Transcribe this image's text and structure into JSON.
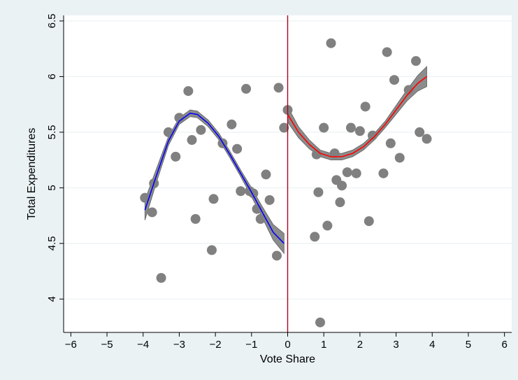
{
  "chart_data": {
    "type": "scatter",
    "title": "",
    "xlabel": "Vote Share",
    "ylabel": "Total Expenditures",
    "xlim": [
      -6.2,
      6.2
    ],
    "ylim": [
      3.7,
      6.55
    ],
    "xticks": [
      -6,
      -5,
      -4,
      -3,
      -2,
      -1,
      0,
      1,
      2,
      3,
      4,
      5,
      6
    ],
    "xtick_labels": [
      "−6",
      "−5",
      "−4",
      "−3",
      "−2",
      "−1",
      "0",
      "1",
      "2",
      "3",
      "4",
      "5",
      "6"
    ],
    "yticks": [
      4,
      4.5,
      5,
      5.5,
      6,
      6.5
    ],
    "ytick_labels": [
      "4",
      "4.5",
      "5",
      "5.5",
      "6",
      "6.5"
    ],
    "grid": "horizontal",
    "cutoff": 0,
    "colors": {
      "points": "#808080",
      "left_fit": "#0000ff",
      "right_fit": "#ff0000",
      "ci_band": "#8c8c8c",
      "cutoff_line": "#b00020",
      "background": "#eaf2f3",
      "plot_background": "#ffffff"
    },
    "points": [
      {
        "x": -3.95,
        "y": 4.91
      },
      {
        "x": -3.7,
        "y": 5.04
      },
      {
        "x": -3.75,
        "y": 4.78
      },
      {
        "x": -3.5,
        "y": 4.19
      },
      {
        "x": -3.3,
        "y": 5.5
      },
      {
        "x": -3.1,
        "y": 5.28
      },
      {
        "x": -3.0,
        "y": 5.63
      },
      {
        "x": -2.75,
        "y": 5.87
      },
      {
        "x": -2.65,
        "y": 5.43
      },
      {
        "x": -2.55,
        "y": 4.72
      },
      {
        "x": -2.4,
        "y": 5.52
      },
      {
        "x": -2.1,
        "y": 4.44
      },
      {
        "x": -2.05,
        "y": 4.9
      },
      {
        "x": -1.8,
        "y": 5.4
      },
      {
        "x": -1.55,
        "y": 5.57
      },
      {
        "x": -1.4,
        "y": 5.35
      },
      {
        "x": -1.3,
        "y": 4.97
      },
      {
        "x": -1.15,
        "y": 5.89
      },
      {
        "x": -1.05,
        "y": 4.97
      },
      {
        "x": -0.95,
        "y": 4.95
      },
      {
        "x": -0.85,
        "y": 4.81
      },
      {
        "x": -0.75,
        "y": 4.72
      },
      {
        "x": -0.6,
        "y": 5.12
      },
      {
        "x": -0.5,
        "y": 4.89
      },
      {
        "x": -0.3,
        "y": 4.39
      },
      {
        "x": -0.25,
        "y": 5.9
      },
      {
        "x": -0.1,
        "y": 5.54
      },
      {
        "x": 0.0,
        "y": 5.7
      },
      {
        "x": 0.75,
        "y": 4.56
      },
      {
        "x": 0.8,
        "y": 5.3
      },
      {
        "x": 0.85,
        "y": 4.96
      },
      {
        "x": 0.9,
        "y": 3.79
      },
      {
        "x": 1.0,
        "y": 5.54
      },
      {
        "x": 1.1,
        "y": 4.66
      },
      {
        "x": 1.2,
        "y": 6.3
      },
      {
        "x": 1.3,
        "y": 5.31
      },
      {
        "x": 1.35,
        "y": 5.07
      },
      {
        "x": 1.45,
        "y": 4.87
      },
      {
        "x": 1.5,
        "y": 5.02
      },
      {
        "x": 1.65,
        "y": 5.14
      },
      {
        "x": 1.75,
        "y": 5.54
      },
      {
        "x": 1.9,
        "y": 5.13
      },
      {
        "x": 2.0,
        "y": 5.51
      },
      {
        "x": 2.15,
        "y": 5.73
      },
      {
        "x": 2.25,
        "y": 4.7
      },
      {
        "x": 2.35,
        "y": 5.47
      },
      {
        "x": 2.65,
        "y": 5.13
      },
      {
        "x": 2.75,
        "y": 6.22
      },
      {
        "x": 2.85,
        "y": 5.4
      },
      {
        "x": 2.95,
        "y": 5.97
      },
      {
        "x": 3.1,
        "y": 5.27
      },
      {
        "x": 3.35,
        "y": 5.88
      },
      {
        "x": 3.55,
        "y": 6.14
      },
      {
        "x": 3.65,
        "y": 5.5
      },
      {
        "x": 3.85,
        "y": 5.44
      }
    ],
    "series": [
      {
        "side": "left",
        "x": [
          -3.95,
          -3.6,
          -3.3,
          -3.0,
          -2.7,
          -2.5,
          -2.2,
          -1.9,
          -1.6,
          -1.3,
          -1.0,
          -0.7,
          -0.4,
          -0.1
        ],
        "y": [
          4.8,
          5.14,
          5.42,
          5.6,
          5.67,
          5.66,
          5.58,
          5.46,
          5.3,
          5.13,
          4.96,
          4.78,
          4.6,
          4.5
        ],
        "ci_halfwidth": [
          0.09,
          0.06,
          0.04,
          0.03,
          0.03,
          0.03,
          0.03,
          0.03,
          0.03,
          0.03,
          0.04,
          0.05,
          0.07,
          0.09
        ]
      },
      {
        "side": "right",
        "x": [
          0.0,
          0.3,
          0.6,
          0.9,
          1.2,
          1.5,
          1.8,
          2.1,
          2.4,
          2.7,
          3.0,
          3.3,
          3.6,
          3.85
        ],
        "y": [
          5.66,
          5.5,
          5.39,
          5.31,
          5.28,
          5.28,
          5.31,
          5.37,
          5.46,
          5.57,
          5.7,
          5.83,
          5.94,
          6.0
        ],
        "ci_halfwidth": [
          0.07,
          0.05,
          0.04,
          0.03,
          0.03,
          0.03,
          0.03,
          0.03,
          0.03,
          0.03,
          0.04,
          0.05,
          0.07,
          0.09
        ]
      }
    ]
  }
}
